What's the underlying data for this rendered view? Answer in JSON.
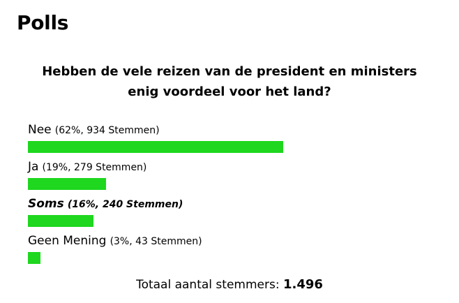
{
  "widget": {
    "title": "Polls",
    "question_line1": "Hebben de vele reizen van de president en ministers",
    "question_line2": "enig voordeel voor het land?",
    "bar_color": "#1ed71e",
    "options": [
      {
        "label": "Nee",
        "stats": "(62%, 934 Stemmen)",
        "percent": 62,
        "votes": 934,
        "selected": false
      },
      {
        "label": "Ja",
        "stats": "(19%, 279 Stemmen)",
        "percent": 19,
        "votes": 279,
        "selected": false
      },
      {
        "label": "Soms",
        "stats": "(16%, 240 Stemmen)",
        "percent": 16,
        "votes": 240,
        "selected": true
      },
      {
        "label": "Geen Mening",
        "stats": "(3%, 43 Stemmen)",
        "percent": 3,
        "votes": 43,
        "selected": false
      }
    ],
    "total_label": "Totaal aantal stemmers:",
    "total_value": "1.496"
  }
}
